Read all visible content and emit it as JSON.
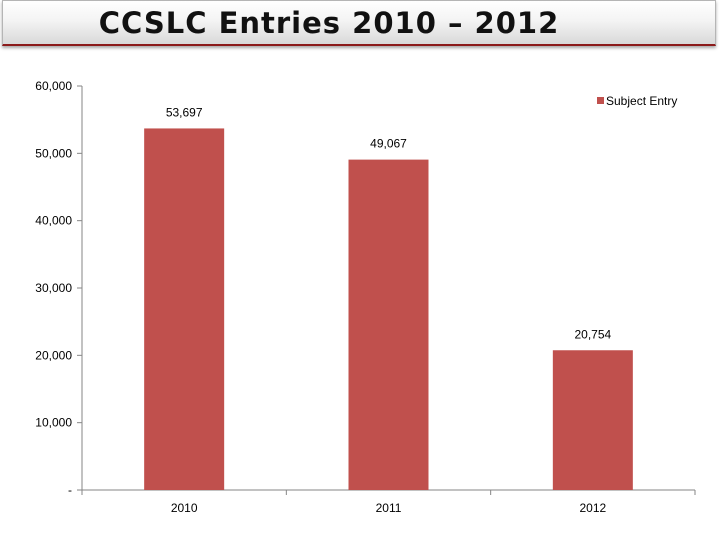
{
  "title": "CCSLC Entries 2010 – 2012",
  "colors": {
    "bar": "#c0504d",
    "axis": "#868686",
    "title_border": "#8c1b1b"
  },
  "chart_data": {
    "type": "bar",
    "categories": [
      "2010",
      "2011",
      "2012"
    ],
    "series": [
      {
        "name": "Subject Entry",
        "values": [
          53697,
          49067,
          20754
        ]
      }
    ],
    "data_labels": [
      "53,697",
      "49,067",
      "20,754"
    ],
    "ylim": [
      0,
      60000
    ],
    "yticks": [
      0,
      10000,
      20000,
      30000,
      40000,
      50000,
      60000
    ],
    "ytick_labels": [
      "-",
      "10,000",
      "20,000",
      "30,000",
      "40,000",
      "50,000",
      "60,000"
    ],
    "grid": false,
    "legend": "top-right"
  }
}
